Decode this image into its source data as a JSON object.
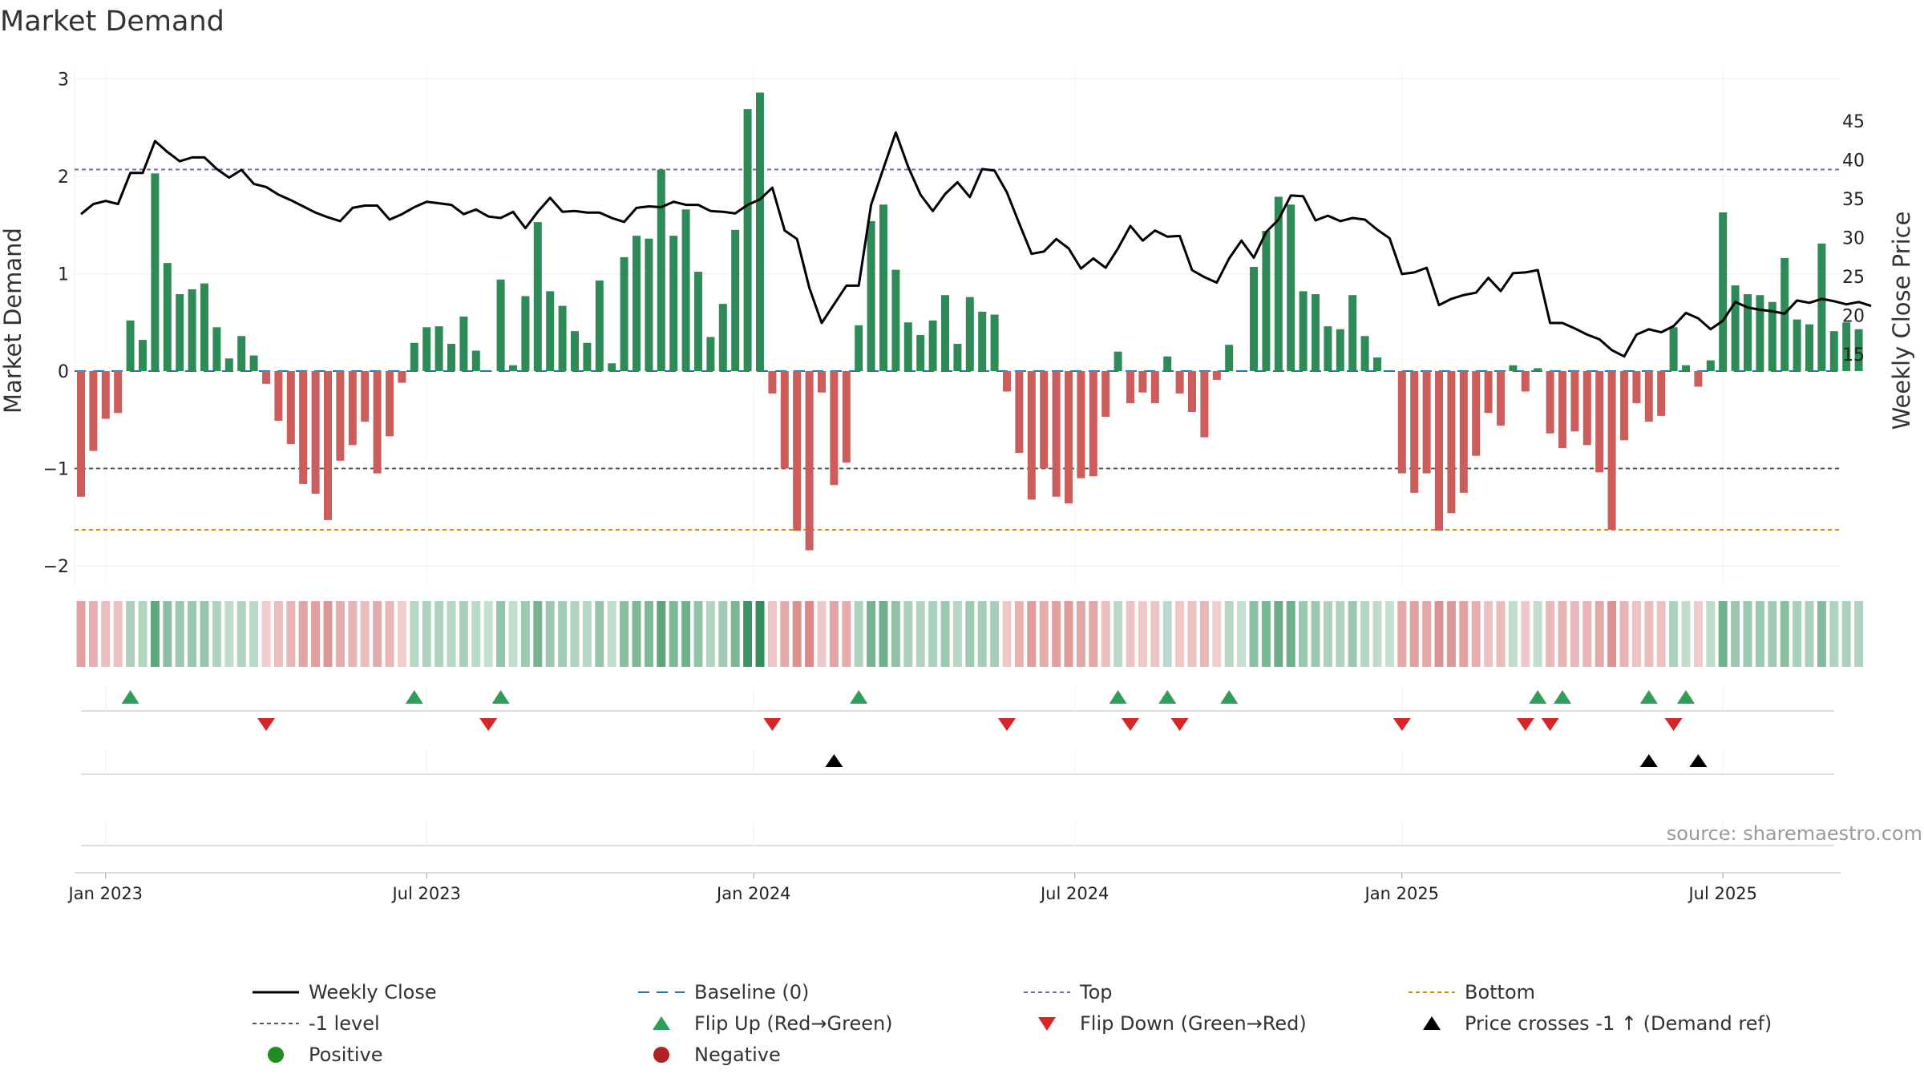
{
  "chart_data": {
    "type": "bar",
    "title": "Market Demand",
    "ylabel_left": "Market Demand",
    "ylabel_right": "Weekly Close Price",
    "source": "source: sharemaestro.com",
    "y_left_range": [
      -2.2,
      3.1
    ],
    "y_left_ticks": [
      {
        "v": 3,
        "label": "3"
      },
      {
        "v": 2,
        "label": "2"
      },
      {
        "v": 1,
        "label": "1"
      },
      {
        "v": 0,
        "label": "0"
      },
      {
        "v": -1,
        "label": "−1"
      },
      {
        "v": -2,
        "label": "−2"
      }
    ],
    "y_right_ticks": [
      {
        "v": 45,
        "label": "45"
      },
      {
        "v": 40,
        "label": "40"
      },
      {
        "v": 35,
        "label": "35"
      },
      {
        "v": 30,
        "label": "30"
      },
      {
        "v": 25,
        "label": "25"
      },
      {
        "v": 20,
        "label": "20"
      },
      {
        "v": 15,
        "label": "15"
      }
    ],
    "x_ticks": [
      {
        "week": 2,
        "label": "Jan 2023"
      },
      {
        "week": 28,
        "label": "Jul 2023"
      },
      {
        "week": 54.5,
        "label": "Jan 2024"
      },
      {
        "week": 80.5,
        "label": "Jul 2024"
      },
      {
        "week": 107,
        "label": "Jan 2025"
      },
      {
        "week": 133,
        "label": "Jul 2025"
      }
    ],
    "reference_lines": {
      "baseline": 0,
      "top": 2.07,
      "minus_one": -1,
      "bottom": -1.63
    },
    "colors": {
      "positive": "#2e8b57",
      "negative": "#cd5c5c",
      "close": "#000000",
      "baseline": "#1f77b4",
      "top": "#7b68c6",
      "minus_one": "#555555",
      "bottom": "#e08a00",
      "flip_up": "#2ca05a",
      "flip_down": "#d62728",
      "cross": "#000000",
      "legend_positive": "#228b22",
      "legend_negative": "#b22222"
    },
    "demand": [
      -1.29,
      -0.82,
      -0.49,
      -0.43,
      0.52,
      0.32,
      2.03,
      1.11,
      0.79,
      0.84,
      0.9,
      0.45,
      0.13,
      0.36,
      0.16,
      -0.13,
      -0.51,
      -0.75,
      -1.16,
      -1.26,
      -1.53,
      -0.92,
      -0.76,
      -0.52,
      -1.05,
      -0.67,
      -0.12,
      0.29,
      0.45,
      0.46,
      0.28,
      0.56,
      0.21,
      0.0,
      0.94,
      0.06,
      0.77,
      1.53,
      0.82,
      0.67,
      0.41,
      0.29,
      0.93,
      0.08,
      1.17,
      1.39,
      1.36,
      2.07,
      1.39,
      1.66,
      1.02,
      0.35,
      0.69,
      1.45,
      2.69,
      2.86,
      -0.23,
      -1.0,
      -1.64,
      -1.84,
      -0.22,
      -1.17,
      -0.94,
      0.47,
      1.54,
      1.71,
      1.04,
      0.5,
      0.37,
      0.52,
      0.78,
      0.28,
      0.76,
      0.61,
      0.58,
      -0.21,
      -0.84,
      -1.32,
      -1.0,
      -1.29,
      -1.36,
      -1.1,
      -1.08,
      -0.47,
      0.2,
      -0.33,
      -0.22,
      -0.33,
      0.15,
      -0.23,
      -0.42,
      -0.68,
      -0.09,
      0.27,
      0.0,
      1.07,
      1.44,
      1.79,
      1.71,
      0.82,
      0.79,
      0.46,
      0.43,
      0.78,
      0.36,
      0.14,
      0.0,
      -1.05,
      -1.25,
      -1.05,
      -1.64,
      -1.46,
      -1.25,
      -0.87,
      -0.43,
      -0.56,
      0.06,
      -0.21,
      0.03,
      -0.64,
      -0.79,
      -0.62,
      -0.76,
      -1.04,
      -1.63,
      -0.71,
      -0.33,
      -0.52,
      -0.46,
      0.45,
      0.06,
      -0.16,
      0.11,
      1.63,
      0.88,
      0.79,
      0.78,
      0.71,
      1.16,
      0.53,
      0.48,
      1.31,
      0.41,
      0.5,
      0.43
    ],
    "weekly_close": [
      33.0,
      34.3,
      34.7,
      34.3,
      38.3,
      38.3,
      42.4,
      41.0,
      39.8,
      40.3,
      40.3,
      38.8,
      37.7,
      38.7,
      36.9,
      36.5,
      35.5,
      34.8,
      34.0,
      33.2,
      32.6,
      32.1,
      33.8,
      34.1,
      34.1,
      32.3,
      33.0,
      33.9,
      34.6,
      34.4,
      34.2,
      33.0,
      33.6,
      32.7,
      32.5,
      33.3,
      31.2,
      33.3,
      35.1,
      33.3,
      33.4,
      33.2,
      33.2,
      32.5,
      32.0,
      33.8,
      34.0,
      33.9,
      34.6,
      34.2,
      34.2,
      33.4,
      33.3,
      33.1,
      34.2,
      34.9,
      36.4,
      30.9,
      29.8,
      23.5,
      19.0,
      21.4,
      23.8,
      23.8,
      34.2,
      38.9,
      43.5,
      39.1,
      35.5,
      33.4,
      35.6,
      37.1,
      35.2,
      38.8,
      38.6,
      35.8,
      31.8,
      27.9,
      28.2,
      29.8,
      28.6,
      26.0,
      27.3,
      26.1,
      28.6,
      31.5,
      29.6,
      30.9,
      30.1,
      30.2,
      25.8,
      24.9,
      24.2,
      27.3,
      29.6,
      27.4,
      30.7,
      32.3,
      35.4,
      35.3,
      32.2,
      32.8,
      32.1,
      32.5,
      32.3,
      31.0,
      29.9,
      25.3,
      25.5,
      26.1,
      21.3,
      22.1,
      22.6,
      22.9,
      24.8,
      23.1,
      25.4,
      25.5,
      25.8,
      19.0,
      19.0,
      18.3,
      17.5,
      16.9,
      15.5,
      14.7,
      17.5,
      18.2,
      17.8,
      18.6,
      20.3,
      19.6,
      18.2,
      19.3,
      21.7,
      21.0,
      20.7,
      20.5,
      20.2,
      21.9,
      21.6,
      22.1,
      21.8,
      21.4,
      21.7,
      21.2
    ],
    "flip_up_weeks": [
      4,
      27,
      34,
      63,
      84,
      88,
      93,
      118,
      120,
      127,
      130
    ],
    "flip_down_weeks": [
      15,
      33,
      56,
      75,
      85,
      89,
      107,
      117,
      119,
      129
    ],
    "price_cross_weeks": [
      61,
      127,
      131
    ],
    "legend": [
      {
        "key": "weekly_close",
        "label": "Weekly Close"
      },
      {
        "key": "baseline",
        "label": "Baseline (0)"
      },
      {
        "key": "top",
        "label": "Top"
      },
      {
        "key": "bottom",
        "label": "Bottom"
      },
      {
        "key": "minus_one",
        "label": "-1 level"
      },
      {
        "key": "flip_up",
        "label": "Flip Up (Red→Green)"
      },
      {
        "key": "flip_down",
        "label": "Flip Down (Green→Red)"
      },
      {
        "key": "cross",
        "label": "Price crosses -1 ↑ (Demand ref)"
      },
      {
        "key": "positive",
        "label": "Positive"
      },
      {
        "key": "negative",
        "label": "Negative"
      }
    ]
  }
}
